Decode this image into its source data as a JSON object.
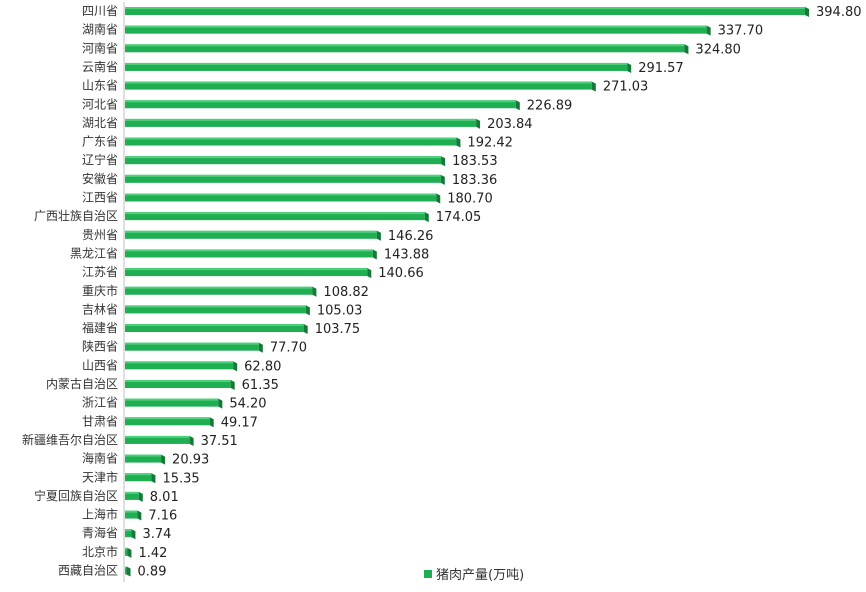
{
  "chart_data": {
    "type": "bar",
    "orientation": "horizontal",
    "categories": [
      "四川省",
      "湖南省",
      "河南省",
      "云南省",
      "山东省",
      "河北省",
      "湖北省",
      "广东省",
      "辽宁省",
      "安徽省",
      "江西省",
      "广西壮族自治区",
      "贵州省",
      "黑龙江省",
      "江苏省",
      "重庆市",
      "吉林省",
      "福建省",
      "陕西省",
      "山西省",
      "内蒙古自治区",
      "浙江省",
      "甘肃省",
      "新疆维吾尔自治区",
      "海南省",
      "天津市",
      "宁夏回族自治区",
      "上海市",
      "青海省",
      "北京市",
      "西藏自治区"
    ],
    "series": [
      {
        "name": "猪肉产量(万吨)",
        "values": [
          394.8,
          337.7,
          324.8,
          291.57,
          271.03,
          226.89,
          203.84,
          192.42,
          183.53,
          183.36,
          180.7,
          174.05,
          146.26,
          143.88,
          140.66,
          108.82,
          105.03,
          103.75,
          77.7,
          62.8,
          61.35,
          54.2,
          49.17,
          37.51,
          20.93,
          15.35,
          8.01,
          7.16,
          3.74,
          1.42,
          0.89
        ],
        "labels": [
          "394.80",
          "337.70",
          "324.80",
          "291.57",
          "271.03",
          "226.89",
          "203.84",
          "192.42",
          "183.53",
          "183.36",
          "180.70",
          "174.05",
          "146.26",
          "143.88",
          "140.66",
          "108.82",
          "105.03",
          "103.75",
          "77.70",
          "62.80",
          "61.35",
          "54.20",
          "49.17",
          "37.51",
          "20.93",
          "15.35",
          "8.01",
          "7.16",
          "3.74",
          "1.42",
          "0.89"
        ]
      }
    ],
    "xlim": [
      0,
      400
    ],
    "grid": false,
    "legend_position": "bottom",
    "colors": {
      "bar": "#1fae52",
      "bar_top": "#4fcf7a",
      "bar_end": "#157a38",
      "axis": "#bfbfbf"
    }
  },
  "legend": {
    "label": "猪肉产量(万吨)"
  }
}
